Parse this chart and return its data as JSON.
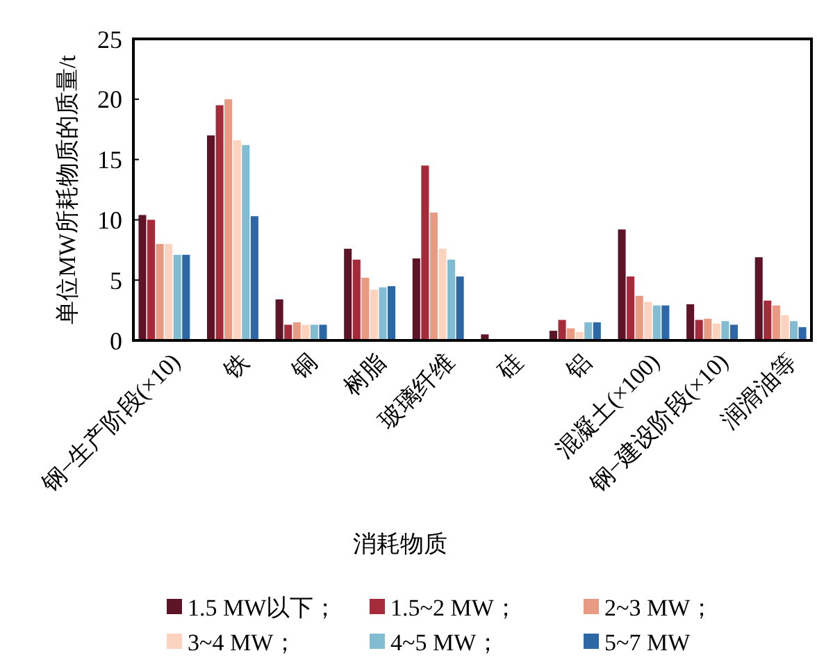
{
  "chart_data": {
    "type": "bar",
    "xlabel": "消耗物质",
    "ylabel": "单位MW所耗物质的质量/t",
    "categories": [
      "钢−生产阶段(×10)",
      "铁",
      "铜",
      "树脂",
      "玻璃纤维",
      "硅",
      "铝",
      "混凝土(×100)",
      "钢−建设阶段(×10)",
      "润滑油等"
    ],
    "series": [
      {
        "name": "1.5 MW以下；",
        "color": "#5c1426",
        "values": [
          10.4,
          17.0,
          3.4,
          7.6,
          6.8,
          0.5,
          0.8,
          9.2,
          3.0,
          6.9
        ]
      },
      {
        "name": "1.5~2 MW；",
        "color": "#a52a3a",
        "values": [
          10.0,
          19.5,
          1.3,
          6.7,
          14.5,
          null,
          1.7,
          5.3,
          1.7,
          3.3
        ]
      },
      {
        "name": "2~3 MW；",
        "color": "#e99a82",
        "values": [
          8.0,
          20.0,
          1.5,
          5.2,
          10.6,
          null,
          1.0,
          3.7,
          1.8,
          2.9
        ]
      },
      {
        "name": "3~4 MW；",
        "color": "#fbd3bf",
        "values": [
          8.0,
          16.6,
          1.3,
          4.2,
          7.6,
          null,
          0.7,
          3.2,
          1.4,
          2.1
        ]
      },
      {
        "name": "4~5 MW；",
        "color": "#82bcd2",
        "values": [
          7.1,
          16.2,
          1.3,
          4.4,
          6.7,
          null,
          1.5,
          2.9,
          1.6,
          1.6
        ]
      },
      {
        "name": "5~7 MW",
        "color": "#2d67a6",
        "values": [
          7.1,
          10.3,
          1.3,
          4.5,
          5.3,
          null,
          1.5,
          2.9,
          1.3,
          1.1
        ]
      }
    ],
    "ylim": [
      0,
      25
    ],
    "yticks": [
      0,
      5,
      10,
      15,
      20,
      25
    ],
    "grid": false,
    "legend": "bottom"
  }
}
